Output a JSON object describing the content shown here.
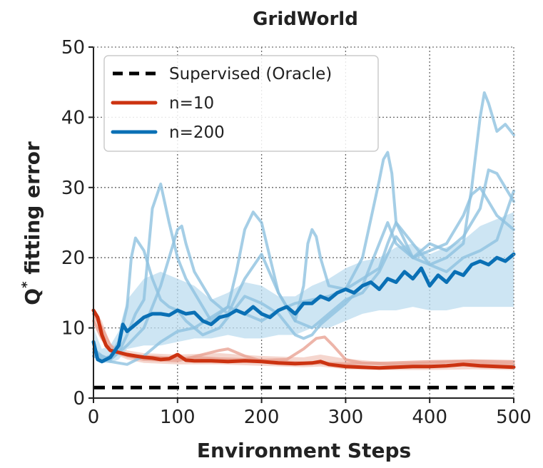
{
  "chart_data": {
    "type": "line",
    "title": "GridWorld",
    "xlabel": "Environment Steps",
    "ylabel": "Q* fitting error",
    "ylabel_main": "Q",
    "ylabel_sup": "*",
    "ylabel_rest": " fitting error",
    "xlim": [
      0,
      500
    ],
    "ylim": [
      0,
      50
    ],
    "xticks": [
      0,
      100,
      200,
      300,
      400,
      500
    ],
    "yticks": [
      0,
      10,
      20,
      30,
      40,
      50
    ],
    "grid": true,
    "legend_position": "top-left",
    "colors": {
      "supervised": "#000000",
      "n10": "#cc3311",
      "n200": "#0a70b5",
      "n10_light": "#e8a393",
      "n200_light": "#8fc2e0",
      "n200_band": "#bcdcef"
    },
    "series": [
      {
        "name": "Supervised (Oracle)",
        "style": "dashed",
        "x": [
          0,
          500
        ],
        "y": [
          1.5,
          1.5
        ]
      },
      {
        "name": "n=10",
        "style": "mean",
        "x": [
          0,
          5,
          10,
          15,
          20,
          30,
          40,
          50,
          60,
          70,
          80,
          90,
          100,
          110,
          120,
          140,
          160,
          180,
          200,
          220,
          240,
          260,
          270,
          280,
          300,
          320,
          340,
          360,
          380,
          400,
          420,
          440,
          460,
          480,
          500
        ],
        "y": [
          12.5,
          11.5,
          9.0,
          7.5,
          6.8,
          6.5,
          6.2,
          6.0,
          5.8,
          5.7,
          5.5,
          5.6,
          6.2,
          5.4,
          5.3,
          5.3,
          5.2,
          5.3,
          5.2,
          5.0,
          4.9,
          5.0,
          5.2,
          4.8,
          4.5,
          4.4,
          4.3,
          4.4,
          4.5,
          4.5,
          4.6,
          4.8,
          4.6,
          4.5,
          4.4
        ]
      },
      {
        "name": "n=200",
        "style": "mean",
        "x": [
          0,
          5,
          10,
          20,
          30,
          35,
          40,
          50,
          60,
          70,
          80,
          90,
          100,
          110,
          120,
          130,
          140,
          150,
          160,
          170,
          180,
          190,
          200,
          210,
          220,
          230,
          240,
          250,
          260,
          270,
          280,
          290,
          300,
          310,
          320,
          330,
          340,
          350,
          360,
          370,
          380,
          390,
          400,
          410,
          420,
          430,
          440,
          450,
          460,
          470,
          480,
          490,
          500
        ],
        "y": [
          8.0,
          5.5,
          5.2,
          5.8,
          7.5,
          10.5,
          9.5,
          10.5,
          11.5,
          12.0,
          12.0,
          11.8,
          12.5,
          12.0,
          12.2,
          11.0,
          10.5,
          11.5,
          11.8,
          12.5,
          12.0,
          13.0,
          12.0,
          11.5,
          12.5,
          13.0,
          12.0,
          13.5,
          13.5,
          14.5,
          14.0,
          15.0,
          15.5,
          15.0,
          16.0,
          16.5,
          15.5,
          17.0,
          16.5,
          18.0,
          17.0,
          18.5,
          16.0,
          17.5,
          16.5,
          18.0,
          17.5,
          19.0,
          19.5,
          19.0,
          20.0,
          19.5,
          20.5
        ]
      },
      {
        "name": "n=10 (run 2)",
        "style": "light",
        "x": [
          0,
          10,
          20,
          30,
          50,
          80,
          100,
          120,
          150,
          180,
          200,
          230,
          250,
          265,
          275,
          285,
          300,
          320,
          350,
          380,
          400,
          430,
          460,
          500
        ],
        "y": [
          12.0,
          10.0,
          7.5,
          6.5,
          6.0,
          5.8,
          5.6,
          5.8,
          5.6,
          5.5,
          5.4,
          5.5,
          7.0,
          8.5,
          8.7,
          7.5,
          5.5,
          5.0,
          4.8,
          4.9,
          5.0,
          5.2,
          5.0,
          4.8
        ]
      },
      {
        "name": "n=10 (run 3)",
        "style": "light",
        "x": [
          0,
          10,
          20,
          40,
          60,
          100,
          150,
          160,
          180,
          200,
          250,
          300,
          350,
          400,
          450,
          500
        ],
        "y": [
          11.0,
          8.5,
          6.8,
          6.0,
          5.5,
          5.3,
          6.8,
          7.0,
          6.0,
          5.3,
          5.0,
          4.9,
          5.0,
          5.2,
          5.3,
          5.2
        ]
      },
      {
        "name": "n=200 (run 2)",
        "style": "light",
        "x": [
          0,
          10,
          20,
          30,
          40,
          45,
          50,
          60,
          70,
          80,
          90,
          100,
          110,
          130,
          150,
          160,
          170,
          180,
          190,
          200,
          220,
          240,
          250,
          260,
          270,
          280,
          300,
          320,
          340,
          350,
          360,
          380,
          400,
          420,
          440,
          450,
          460,
          470,
          480,
          490,
          500
        ],
        "y": [
          6.0,
          5.5,
          6.0,
          8.0,
          13.0,
          20.0,
          22.8,
          21.0,
          17.0,
          14.0,
          13.0,
          12.5,
          11.0,
          9.0,
          10.0,
          11.5,
          13.0,
          14.5,
          14.0,
          13.5,
          12.0,
          9.0,
          8.5,
          9.0,
          10.5,
          11.5,
          13.5,
          16.0,
          22.0,
          25.0,
          22.0,
          20.0,
          21.0,
          22.0,
          26.0,
          29.0,
          30.0,
          28.0,
          26.0,
          25.0,
          24.0
        ]
      },
      {
        "name": "n=200 (run 3)",
        "style": "light",
        "x": [
          0,
          10,
          20,
          30,
          40,
          50,
          60,
          70,
          80,
          90,
          100,
          110,
          120,
          140,
          160,
          170,
          180,
          190,
          200,
          210,
          220,
          240,
          250,
          255,
          260,
          265,
          270,
          280,
          300,
          320,
          340,
          345,
          350,
          355,
          360,
          380,
          400,
          420,
          440,
          450,
          460,
          465,
          470,
          480,
          490,
          500
        ],
        "y": [
          7.0,
          6.0,
          5.5,
          6.5,
          9.0,
          12.0,
          14.0,
          27.0,
          30.5,
          25.0,
          20.0,
          17.0,
          15.0,
          11.0,
          13.0,
          18.0,
          24.0,
          26.5,
          25.0,
          20.0,
          15.0,
          11.0,
          16.0,
          22.0,
          24.0,
          23.0,
          20.0,
          16.0,
          15.5,
          20.0,
          31.0,
          34.0,
          35.0,
          32.0,
          25.0,
          20.0,
          19.0,
          20.0,
          22.0,
          30.0,
          40.0,
          43.5,
          42.0,
          38.0,
          39.0,
          37.5
        ]
      },
      {
        "name": "n=200 (run 4)",
        "style": "light",
        "x": [
          0,
          20,
          40,
          60,
          80,
          100,
          105,
          110,
          120,
          140,
          160,
          180,
          200,
          220,
          240,
          260,
          280,
          300,
          320,
          340,
          360,
          380,
          400,
          420,
          440,
          460,
          470,
          480,
          490,
          500
        ],
        "y": [
          6.5,
          5.5,
          7.5,
          10.0,
          16.0,
          24.0,
          24.5,
          22.0,
          18.0,
          14.0,
          12.0,
          17.0,
          20.5,
          15.0,
          11.0,
          10.0,
          12.0,
          14.0,
          15.0,
          18.0,
          23.0,
          20.0,
          22.0,
          21.0,
          23.0,
          27.0,
          32.5,
          32.0,
          30.0,
          28.0
        ]
      },
      {
        "name": "n=200 (run 5)",
        "style": "light",
        "x": [
          0,
          20,
          40,
          60,
          80,
          100,
          120,
          140,
          160,
          180,
          200,
          220,
          240,
          260,
          280,
          300,
          320,
          340,
          350,
          360,
          380,
          400,
          420,
          440,
          460,
          480,
          500
        ],
        "y": [
          6.0,
          5.2,
          4.8,
          6.0,
          8.0,
          9.5,
          10.0,
          11.5,
          13.0,
          12.0,
          11.0,
          12.5,
          13.5,
          14.0,
          14.5,
          15.5,
          17.0,
          18.5,
          22.0,
          25.0,
          22.0,
          19.0,
          18.0,
          20.0,
          21.0,
          22.5,
          29.5
        ]
      }
    ],
    "bands": [
      {
        "name": "n=10 band",
        "x": [
          0,
          10,
          20,
          40,
          60,
          100,
          150,
          200,
          250,
          270,
          300,
          350,
          400,
          450,
          500
        ],
        "lower": [
          11.0,
          8.5,
          6.5,
          5.5,
          5.0,
          4.8,
          4.8,
          4.6,
          4.4,
          4.5,
          4.1,
          4.0,
          4.0,
          4.1,
          4.0
        ],
        "upper": [
          12.8,
          11.0,
          7.8,
          6.8,
          6.4,
          6.2,
          6.4,
          6.0,
          5.8,
          6.2,
          5.6,
          5.1,
          5.2,
          5.5,
          5.3
        ]
      },
      {
        "name": "n=200 band",
        "x": [
          0,
          10,
          20,
          30,
          40,
          60,
          80,
          100,
          120,
          140,
          160,
          180,
          200,
          220,
          240,
          260,
          280,
          300,
          320,
          340,
          360,
          380,
          400,
          420,
          440,
          460,
          480,
          500
        ],
        "lower": [
          6.0,
          5.0,
          5.0,
          5.5,
          7.0,
          7.5,
          7.5,
          8.0,
          8.5,
          8.5,
          9.0,
          8.5,
          8.5,
          9.0,
          9.0,
          10.0,
          10.0,
          11.0,
          12.0,
          12.5,
          12.5,
          13.0,
          12.5,
          12.5,
          13.0,
          13.0,
          13.0,
          13.0
        ],
        "upper": [
          10.0,
          7.0,
          7.5,
          9.5,
          14.0,
          17.0,
          18.0,
          17.0,
          16.0,
          14.0,
          15.0,
          16.5,
          16.0,
          14.5,
          14.5,
          16.0,
          17.0,
          18.5,
          19.5,
          20.0,
          21.5,
          22.0,
          20.5,
          21.5,
          22.5,
          24.5,
          25.5,
          26.5
        ]
      }
    ]
  }
}
